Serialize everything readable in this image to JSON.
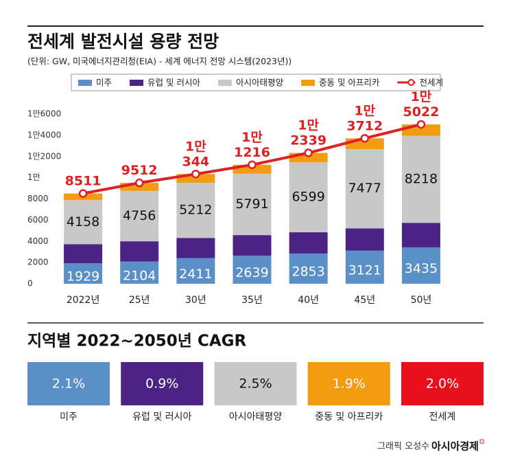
{
  "chart_data": {
    "type": "stacked-bar-line",
    "title": "전세계 발전시설 용량 전망",
    "subtitle": "(단위: GW, 미국에너지관리청(EIA) - 세계 에너지 전망 시스템(2023년))",
    "categories": [
      "2022년",
      "25년",
      "30년",
      "35년",
      "40년",
      "45년",
      "50년"
    ],
    "series": [
      {
        "name": "미주",
        "color": "#5b8fc7",
        "values": [
          1929,
          2104,
          2411,
          2639,
          2853,
          3121,
          3435
        ],
        "labeled": true
      },
      {
        "name": "유럽 및 러시아",
        "color": "#4b2384",
        "values": [
          1800,
          1900,
          1900,
          1950,
          2000,
          2100,
          2300
        ],
        "labeled": false
      },
      {
        "name": "아시아태평양",
        "color": "#c8c8c8",
        "values": [
          4158,
          4756,
          5212,
          5791,
          6599,
          7477,
          8218
        ],
        "labeled": true
      },
      {
        "name": "중동 및 아프리카",
        "color": "#f39c12",
        "values": [
          624,
          752,
          821,
          836,
          887,
          1014,
          1069
        ],
        "labeled": false
      },
      {
        "name": "전세계",
        "type": "line",
        "color": "#e02020",
        "values": [
          8511,
          9512,
          10344,
          11216,
          12339,
          13712,
          15022
        ],
        "value_labels": [
          "8511",
          "9512",
          "1만 344",
          "1만 1216",
          "1만 2339",
          "1만 3712",
          "1만 5022"
        ]
      }
    ],
    "ylim": [
      0,
      16000
    ],
    "yticks": [
      0,
      2000,
      4000,
      6000,
      8000,
      {
        "value": 10000,
        "label": "1만"
      },
      {
        "value": 12000,
        "label": "1만2000"
      },
      {
        "value": 14000,
        "label": "1만4000"
      },
      {
        "value": 16000,
        "label": "1만6000"
      }
    ],
    "grid": false
  },
  "cagr": {
    "title": "지역별 2022~2050년 CAGR",
    "items": [
      {
        "label": "미주",
        "value": "2.1%",
        "color": "#5b8fc7"
      },
      {
        "label": "유럽 및 러시아",
        "value": "0.9%",
        "color": "#4b2384"
      },
      {
        "label": "아시아태평양",
        "value": "2.5%",
        "color": "#c8c8c8"
      },
      {
        "label": "중동 및 아프리카",
        "value": "1.9%",
        "color": "#f39c12"
      },
      {
        "label": "전세계",
        "value": "2.0%",
        "color": "#e8101c"
      }
    ]
  },
  "credit": {
    "author": "그래픽 오성수",
    "outlet": "아시아경제"
  }
}
